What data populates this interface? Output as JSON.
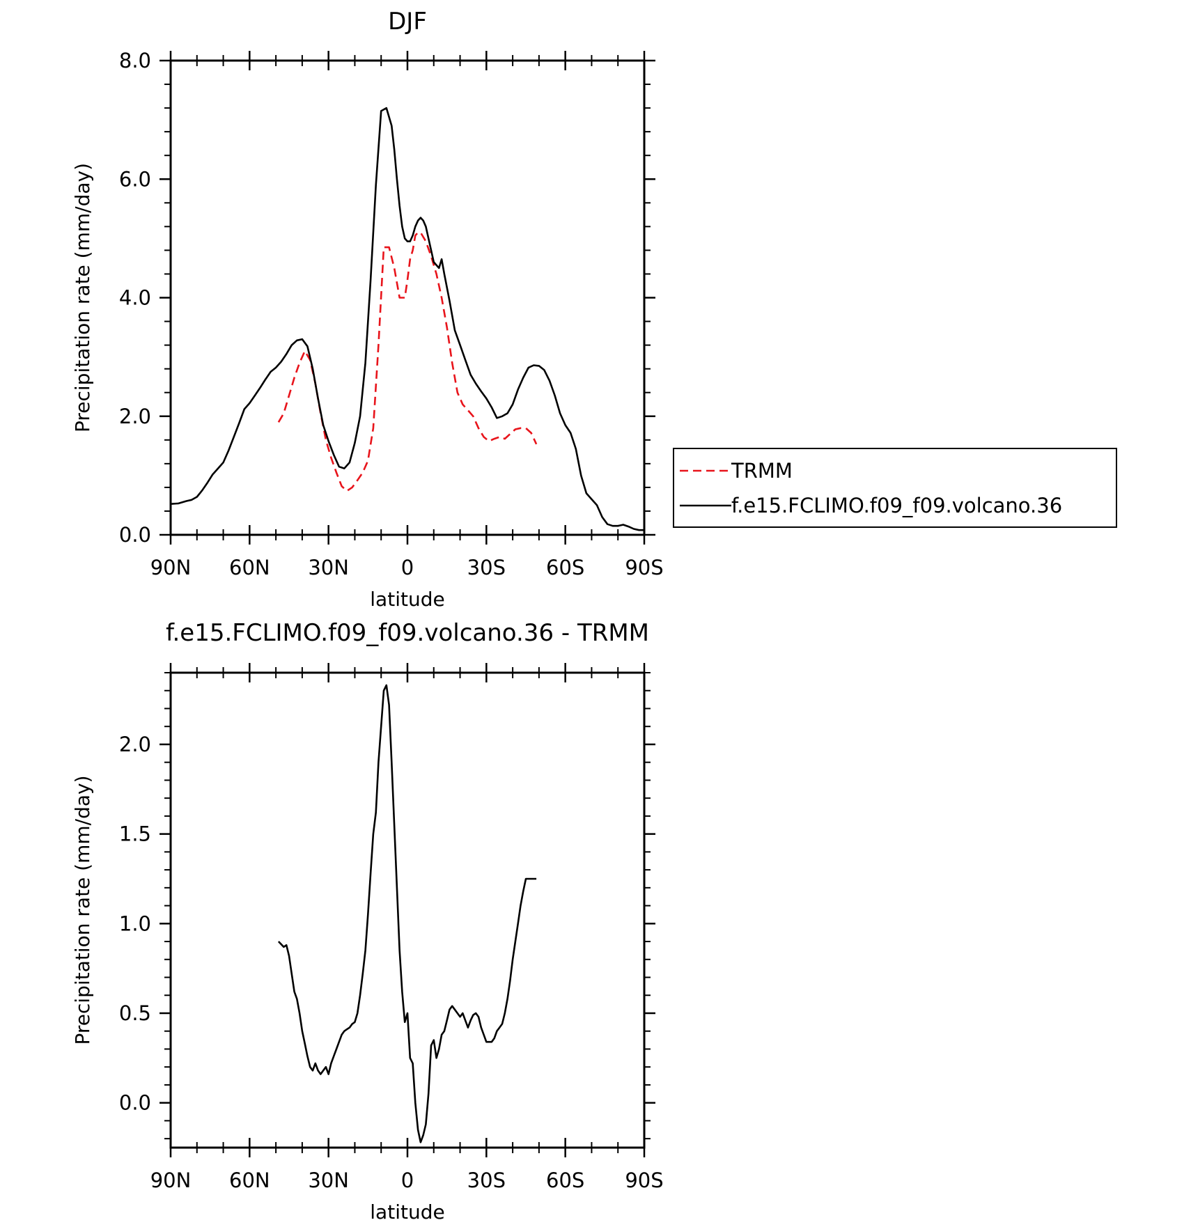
{
  "chart_data": [
    {
      "type": "line",
      "title": "DJF",
      "xlabel": "latitude",
      "ylabel": "Precipitation rate (mm/day)",
      "xlim": [
        90,
        -90
      ],
      "ylim": [
        0,
        8
      ],
      "x_ticks": [
        90,
        60,
        30,
        0,
        -30,
        -60,
        -90
      ],
      "x_tick_labels": [
        "90N",
        "60N",
        "30N",
        "0",
        "30S",
        "60S",
        "90S"
      ],
      "y_ticks": [
        0,
        2,
        4,
        6,
        8
      ],
      "y_tick_labels": [
        "0.0",
        "2.0",
        "4.0",
        "6.0",
        "8.0"
      ],
      "legend_position": "right",
      "series": [
        {
          "name": "TRMM",
          "color": "#e8141b",
          "dash": "dashed",
          "x": [
            49,
            47,
            45,
            43,
            41,
            39,
            37,
            35,
            33,
            31,
            29,
            27,
            25,
            23,
            21,
            19,
            17,
            15,
            13,
            11,
            9,
            7,
            5,
            4,
            3,
            1,
            0,
            -1,
            -2,
            -3,
            -4,
            -5,
            -7,
            -9,
            -11,
            -13,
            -15,
            -17,
            -19,
            -21,
            -23,
            -25,
            -27,
            -29,
            -31,
            -33,
            -35,
            -37,
            -39,
            -41,
            -43,
            -45,
            -47,
            -49
          ],
          "y": [
            1.9,
            2.05,
            2.35,
            2.65,
            2.9,
            3.1,
            2.95,
            2.55,
            2.05,
            1.6,
            1.3,
            1.05,
            0.82,
            0.74,
            0.8,
            0.92,
            1.05,
            1.25,
            1.8,
            3.2,
            4.85,
            4.85,
            4.5,
            4.25,
            4.0,
            4.0,
            4.3,
            4.65,
            4.8,
            5.05,
            5.1,
            5.1,
            4.95,
            4.7,
            4.4,
            4.0,
            3.5,
            2.9,
            2.4,
            2.2,
            2.1,
            2.0,
            1.8,
            1.65,
            1.58,
            1.62,
            1.65,
            1.62,
            1.7,
            1.78,
            1.8,
            1.8,
            1.72,
            1.53
          ]
        },
        {
          "name": "f.e15.FCLIMO.f09_f09.volcano.36",
          "color": "#000000",
          "dash": "solid",
          "x": [
            90,
            87,
            84,
            82,
            80,
            78,
            76,
            74,
            72,
            70,
            68,
            66,
            64,
            62,
            60,
            58,
            56,
            54,
            52,
            50,
            48,
            46,
            44,
            42,
            40,
            38,
            36,
            34,
            32,
            30,
            28,
            26,
            24,
            22,
            20,
            18,
            16,
            14,
            12,
            10,
            8,
            6,
            5,
            4,
            3,
            2,
            1,
            0,
            -1,
            -2,
            -3,
            -4,
            -5,
            -6,
            -7,
            -8,
            -10,
            -12,
            -13,
            -14,
            -16,
            -18,
            -20,
            -22,
            -24,
            -26,
            -28,
            -30,
            -32,
            -34,
            -36,
            -38,
            -40,
            -42,
            -44,
            -46,
            -48,
            -50,
            -52,
            -54,
            -56,
            -58,
            -60,
            -62,
            -64,
            -66,
            -68,
            -70,
            -72,
            -74,
            -76,
            -78,
            -80,
            -82,
            -84,
            -86,
            -88,
            -90
          ],
          "y": [
            0.52,
            0.53,
            0.57,
            0.59,
            0.64,
            0.75,
            0.88,
            1.02,
            1.12,
            1.22,
            1.42,
            1.65,
            1.88,
            2.12,
            2.22,
            2.35,
            2.48,
            2.62,
            2.75,
            2.82,
            2.92,
            3.05,
            3.2,
            3.28,
            3.3,
            3.18,
            2.8,
            2.3,
            1.85,
            1.58,
            1.35,
            1.15,
            1.12,
            1.22,
            1.55,
            2.0,
            2.9,
            4.3,
            5.9,
            7.15,
            7.2,
            6.9,
            6.5,
            6.0,
            5.55,
            5.2,
            5.0,
            4.95,
            4.95,
            5.05,
            5.2,
            5.3,
            5.35,
            5.3,
            5.2,
            5.0,
            4.6,
            4.5,
            4.65,
            4.4,
            3.95,
            3.45,
            3.2,
            2.95,
            2.7,
            2.55,
            2.42,
            2.3,
            2.15,
            1.97,
            2.0,
            2.05,
            2.2,
            2.45,
            2.65,
            2.82,
            2.86,
            2.85,
            2.78,
            2.6,
            2.35,
            2.05,
            1.85,
            1.72,
            1.45,
            1.0,
            0.7,
            0.6,
            0.5,
            0.3,
            0.18,
            0.15,
            0.15,
            0.17,
            0.14,
            0.1,
            0.08,
            0.08
          ]
        }
      ]
    },
    {
      "type": "line",
      "title": "f.e15.FCLIMO.f09_f09.volcano.36 - TRMM",
      "xlabel": "latitude",
      "ylabel": "Precipitation rate (mm/day)",
      "xlim": [
        90,
        -90
      ],
      "ylim": [
        -0.25,
        2.4
      ],
      "x_ticks": [
        90,
        60,
        30,
        0,
        -30,
        -60,
        -90
      ],
      "x_tick_labels": [
        "90N",
        "60N",
        "30N",
        "0",
        "30S",
        "60S",
        "90S"
      ],
      "y_ticks": [
        0.0,
        0.5,
        1.0,
        1.5,
        2.0
      ],
      "y_tick_labels": [
        "0.0",
        "0.5",
        "1.0",
        "1.5",
        "2.0"
      ],
      "series": [
        {
          "color": "#000000",
          "dash": "solid",
          "x": [
            49,
            47,
            46,
            45,
            44,
            43,
            42,
            41,
            40,
            39,
            38,
            37,
            36,
            35,
            34,
            33,
            32,
            31,
            30,
            29,
            28,
            27,
            26,
            25,
            24,
            23,
            22,
            21,
            20,
            19,
            18,
            17,
            16,
            15,
            14,
            13,
            12,
            11,
            10,
            9,
            8,
            7,
            6,
            5,
            4,
            3,
            2,
            1,
            0,
            -1,
            -2,
            -3,
            -4,
            -5,
            -6,
            -7,
            -8,
            -9,
            -10,
            -11,
            -12,
            -13,
            -14,
            -15,
            -16,
            -17,
            -18,
            -19,
            -20,
            -21,
            -22,
            -23,
            -24,
            -25,
            -26,
            -27,
            -28,
            -29,
            -30,
            -31,
            -32,
            -33,
            -34,
            -35,
            -36,
            -37,
            -38,
            -39,
            -40,
            -41,
            -42,
            -43,
            -44,
            -45,
            -46,
            -47,
            -48,
            -49
          ],
          "y": [
            0.9,
            0.87,
            0.88,
            0.82,
            0.72,
            0.62,
            0.58,
            0.5,
            0.4,
            0.33,
            0.26,
            0.2,
            0.18,
            0.22,
            0.18,
            0.16,
            0.18,
            0.2,
            0.16,
            0.22,
            0.26,
            0.3,
            0.34,
            0.38,
            0.4,
            0.41,
            0.42,
            0.44,
            0.45,
            0.5,
            0.6,
            0.72,
            0.85,
            1.05,
            1.28,
            1.5,
            1.62,
            1.9,
            2.1,
            2.3,
            2.33,
            2.22,
            1.9,
            1.55,
            1.2,
            0.85,
            0.62,
            0.45,
            0.5,
            0.25,
            0.22,
            0.0,
            -0.15,
            -0.22,
            -0.18,
            -0.12,
            0.05,
            0.32,
            0.35,
            0.25,
            0.3,
            0.38,
            0.4,
            0.46,
            0.52,
            0.54,
            0.52,
            0.5,
            0.48,
            0.5,
            0.46,
            0.42,
            0.46,
            0.49,
            0.5,
            0.48,
            0.42,
            0.38,
            0.34,
            0.34,
            0.34,
            0.36,
            0.4,
            0.42,
            0.44,
            0.5,
            0.58,
            0.68,
            0.8,
            0.9,
            1.0,
            1.1,
            1.18,
            1.25,
            1.25,
            1.25,
            1.25,
            1.25
          ]
        }
      ]
    }
  ]
}
